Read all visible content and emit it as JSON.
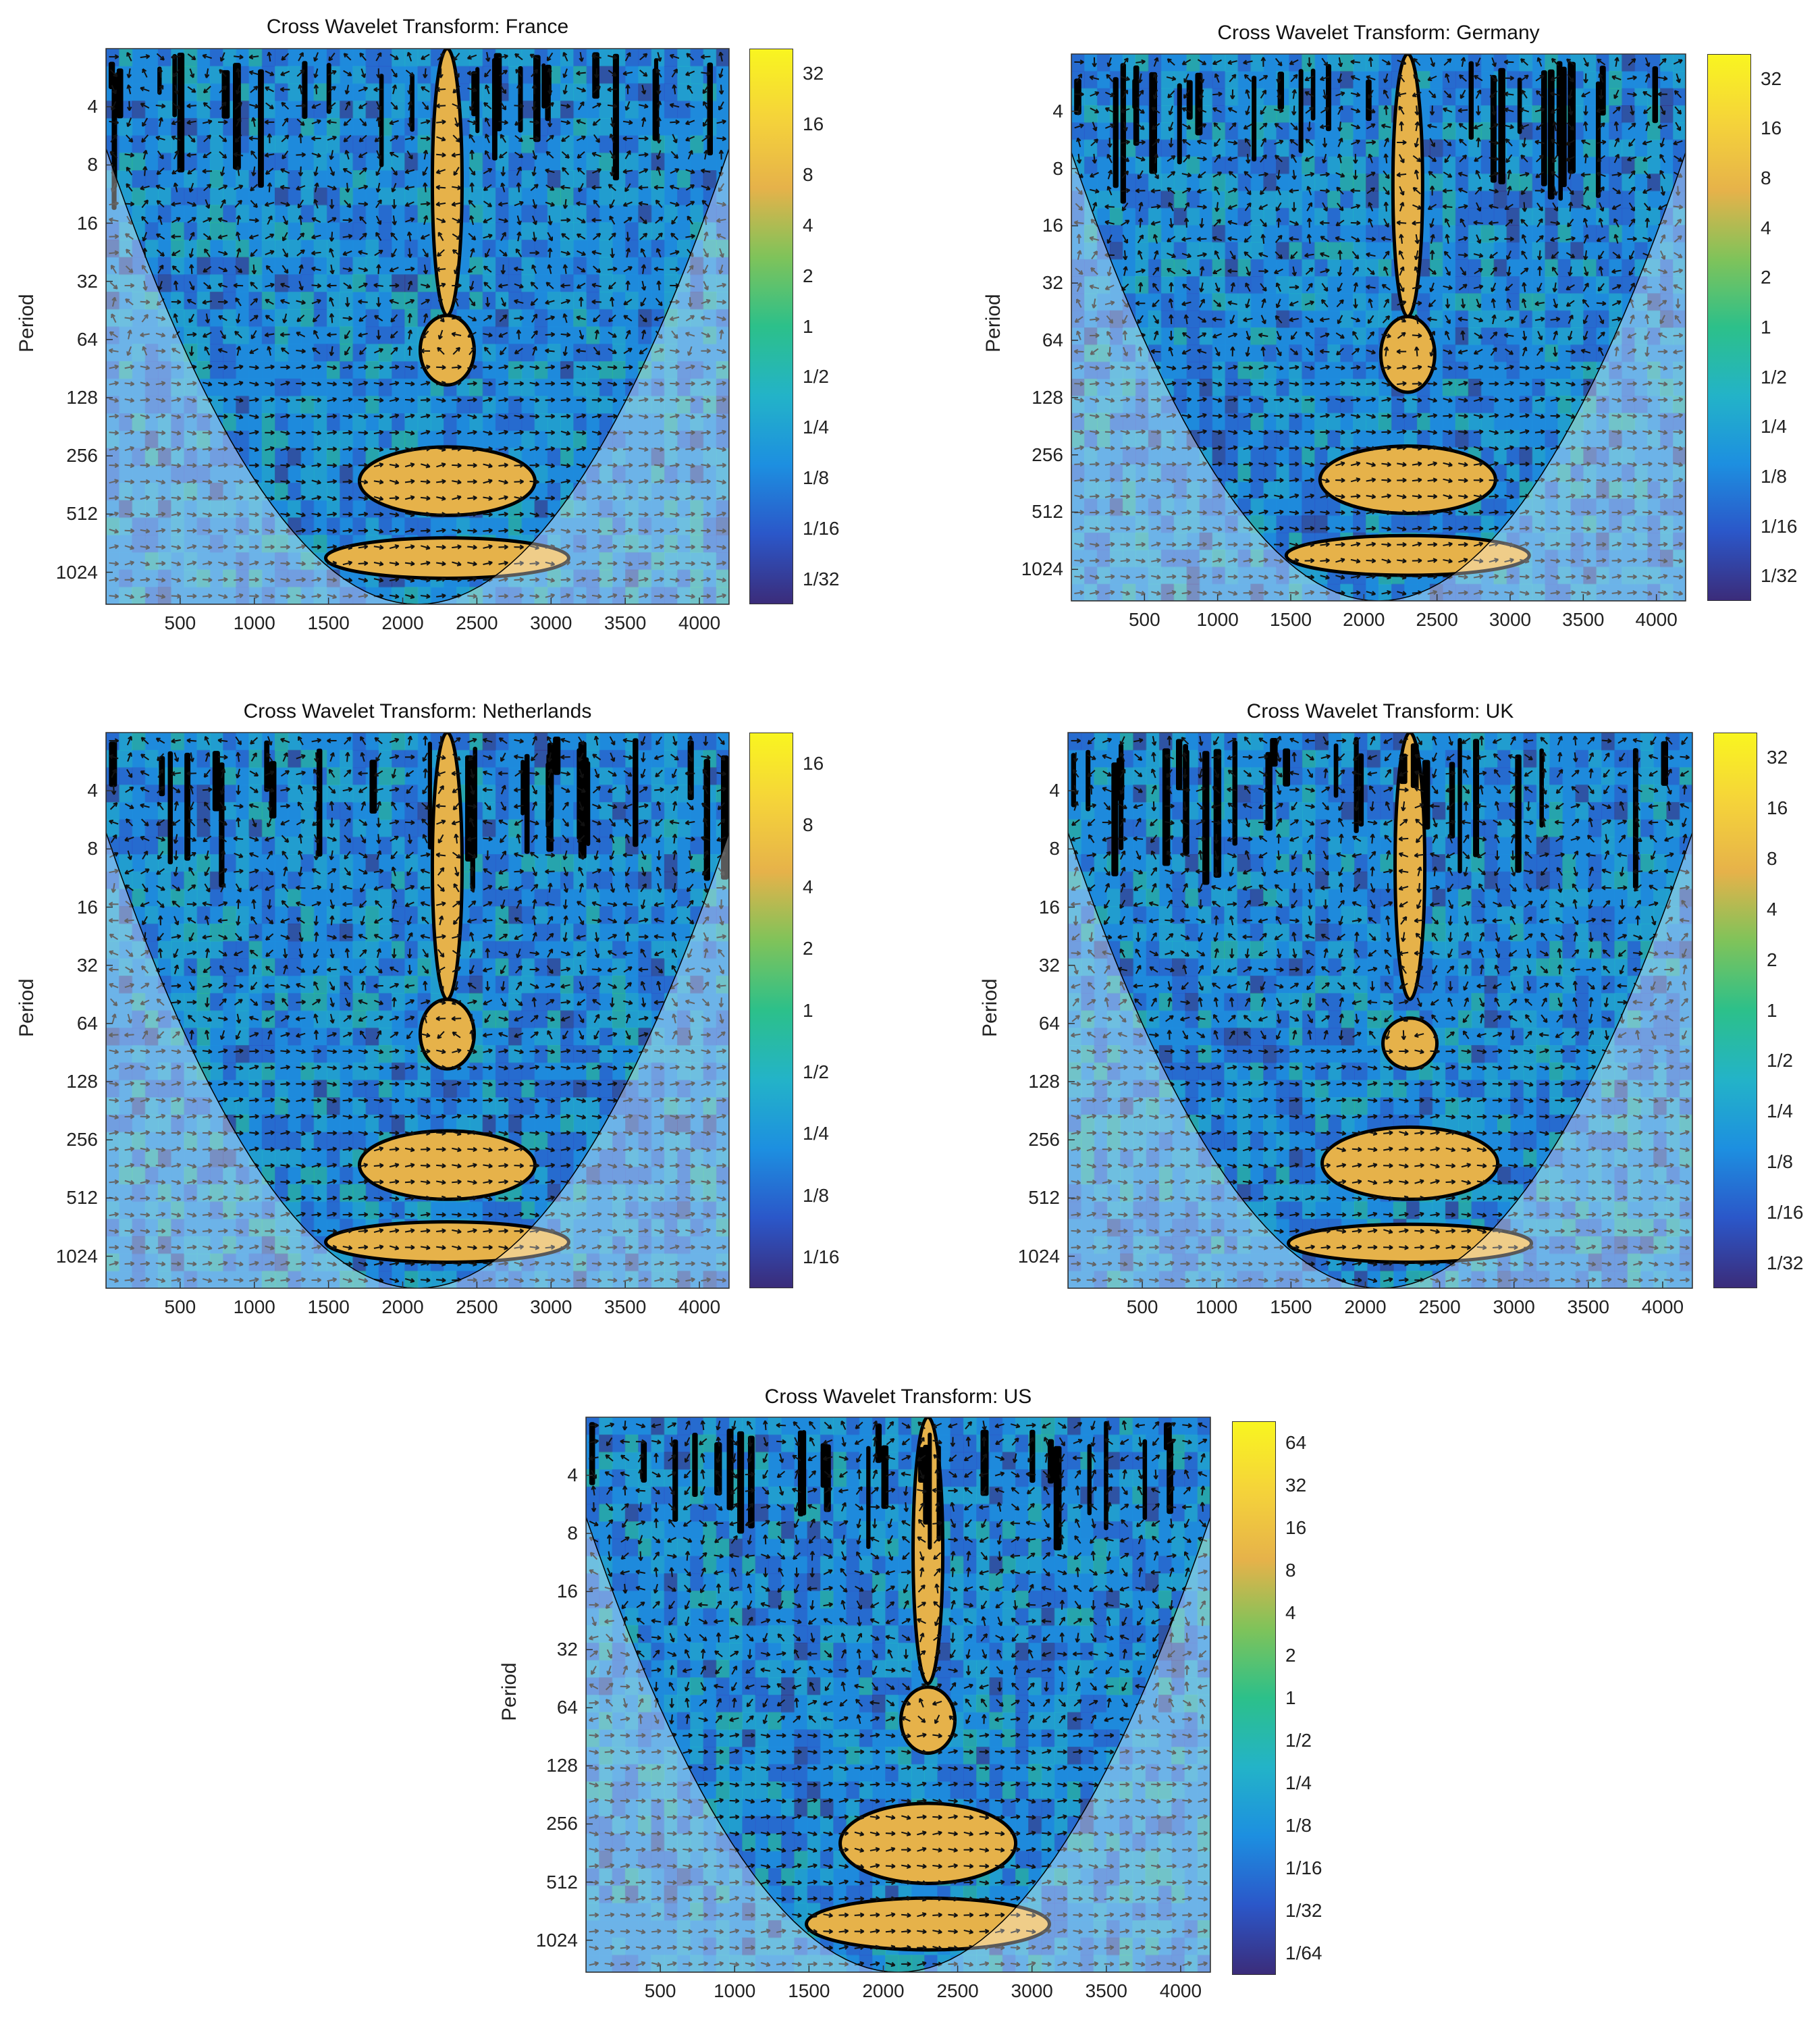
{
  "chart_data": [
    {
      "type": "heatmap",
      "title": "Cross Wavelet Transform: France",
      "ylabel": "Period",
      "xticks": [
        500,
        1000,
        1500,
        2000,
        2500,
        3000,
        3500,
        4000
      ],
      "yticks": [
        4,
        8,
        16,
        32,
        64,
        128,
        256,
        512,
        1024
      ],
      "xlim": [
        0,
        4200
      ],
      "ylim_period": [
        2,
        1500
      ],
      "colorbar_ticks": [
        "32",
        "16",
        "8",
        "4",
        "2",
        "1",
        "1/2",
        "1/4",
        "1/8",
        "1/16",
        "1/32"
      ],
      "high_power_regions_approx": [
        {
          "x": 2300,
          "period_range": [
            2,
            48
          ]
        },
        {
          "x": 2300,
          "period_range": [
            48,
            110
          ]
        },
        {
          "x": 2300,
          "period_range": [
            230,
            520
          ]
        },
        {
          "x": 2300,
          "period_range": [
            680,
            1100
          ]
        }
      ]
    },
    {
      "type": "heatmap",
      "title": "Cross Wavelet Transform: Germany",
      "ylabel": "Period",
      "xticks": [
        500,
        1000,
        1500,
        2000,
        2500,
        3000,
        3500,
        4000
      ],
      "yticks": [
        4,
        8,
        16,
        32,
        64,
        128,
        256,
        512,
        1024
      ],
      "xlim": [
        0,
        4200
      ],
      "ylim_period": [
        2,
        1500
      ],
      "colorbar_ticks": [
        "32",
        "16",
        "8",
        "4",
        "2",
        "1",
        "1/2",
        "1/4",
        "1/8",
        "1/16",
        "1/32"
      ],
      "high_power_regions_approx": [
        {
          "x": 2300,
          "period_range": [
            2,
            48
          ]
        },
        {
          "x": 2300,
          "period_range": [
            48,
            120
          ]
        },
        {
          "x": 2300,
          "period_range": [
            230,
            520
          ]
        },
        {
          "x": 2300,
          "period_range": [
            680,
            1100
          ]
        }
      ]
    },
    {
      "type": "heatmap",
      "title": "Cross Wavelet Transform: Netherlands",
      "ylabel": "Period",
      "xticks": [
        500,
        1000,
        1500,
        2000,
        2500,
        3000,
        3500,
        4000
      ],
      "yticks": [
        4,
        8,
        16,
        32,
        64,
        128,
        256,
        512,
        1024
      ],
      "xlim": [
        0,
        4200
      ],
      "ylim_period": [
        2,
        1500
      ],
      "colorbar_ticks": [
        "16",
        "8",
        "4",
        "2",
        "1",
        "1/2",
        "1/4",
        "1/8",
        "1/16"
      ],
      "high_power_regions_approx": [
        {
          "x": 2300,
          "period_range": [
            2,
            48
          ]
        },
        {
          "x": 2300,
          "period_range": [
            48,
            110
          ]
        },
        {
          "x": 2300,
          "period_range": [
            230,
            520
          ]
        },
        {
          "x": 2300,
          "period_range": [
            680,
            1100
          ]
        }
      ]
    },
    {
      "type": "heatmap",
      "title": "Cross Wavelet Transform: UK",
      "ylabel": "Period",
      "xticks": [
        500,
        1000,
        1500,
        2000,
        2500,
        3000,
        3500,
        4000
      ],
      "yticks": [
        4,
        8,
        16,
        32,
        64,
        128,
        256,
        512,
        1024
      ],
      "xlim": [
        0,
        4200
      ],
      "ylim_period": [
        2,
        1500
      ],
      "colorbar_ticks": [
        "32",
        "16",
        "8",
        "4",
        "2",
        "1",
        "1/2",
        "1/4",
        "1/8",
        "1/16",
        "1/32"
      ],
      "high_power_regions_approx": [
        {
          "x": 2300,
          "period_range": [
            2,
            48
          ]
        },
        {
          "x": 2300,
          "period_range": [
            60,
            110
          ]
        },
        {
          "x": 2300,
          "period_range": [
            220,
            520
          ]
        },
        {
          "x": 2300,
          "period_range": [
            700,
            1100
          ]
        }
      ]
    },
    {
      "type": "heatmap",
      "title": "Cross Wavelet Transform: US",
      "ylabel": "Period",
      "xticks": [
        500,
        1000,
        1500,
        2000,
        2500,
        3000,
        3500,
        4000
      ],
      "yticks": [
        4,
        8,
        16,
        32,
        64,
        128,
        256,
        512,
        1024
      ],
      "xlim": [
        0,
        4200
      ],
      "ylim_period": [
        2,
        1500
      ],
      "colorbar_ticks": [
        "64",
        "32",
        "16",
        "8",
        "4",
        "2",
        "1",
        "1/2",
        "1/4",
        "1/8",
        "1/16",
        "1/32",
        "1/64"
      ],
      "high_power_regions_approx": [
        {
          "x": 2300,
          "period_range": [
            2,
            48
          ]
        },
        {
          "x": 2300,
          "period_range": [
            50,
            110
          ]
        },
        {
          "x": 2300,
          "period_range": [
            200,
            520
          ]
        },
        {
          "x": 2300,
          "period_range": [
            620,
            1150
          ]
        }
      ]
    }
  ],
  "colors": {
    "colormap": [
      "#3b2c7a",
      "#2b57c9",
      "#1d8fe0",
      "#23b3c8",
      "#2cc08a",
      "#7fc35a",
      "#e6b24a",
      "#f5d33a",
      "#f9f520"
    ],
    "contour": "#000000",
    "cone_shade": "rgba(255,255,255,0.35)"
  }
}
